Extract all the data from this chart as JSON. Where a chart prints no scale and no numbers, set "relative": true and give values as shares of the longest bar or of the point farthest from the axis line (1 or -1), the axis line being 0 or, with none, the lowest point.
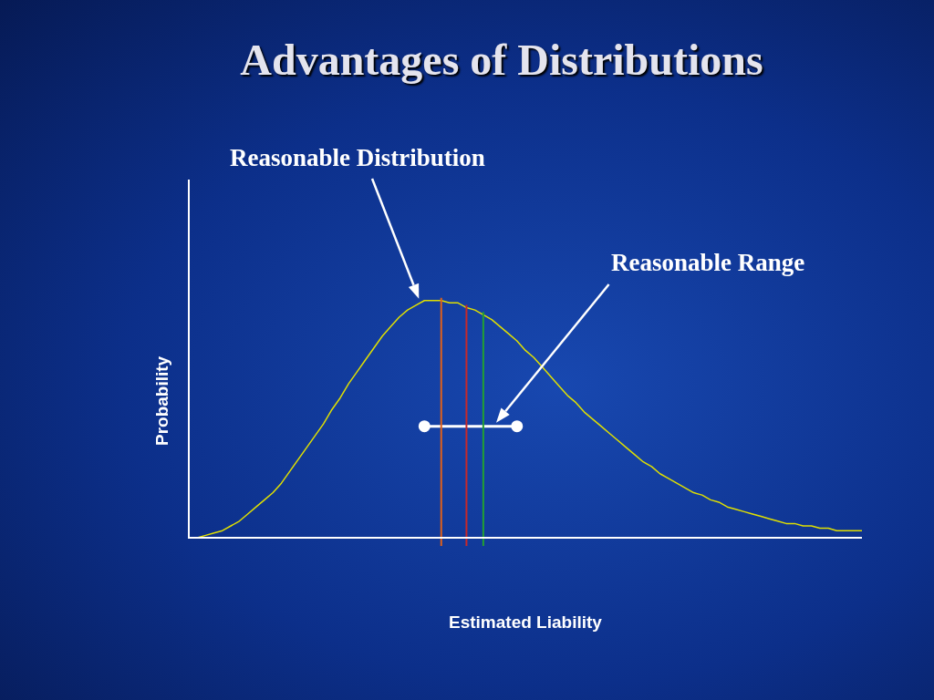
{
  "chart_data": {
    "type": "line",
    "title": "Advantages of Distributions",
    "xlabel": "Estimated Liability",
    "ylabel": "Probability",
    "relative": true,
    "annotations": [
      "Reasonable Distribution",
      "Reasonable Range"
    ],
    "categories": [
      null,
      null,
      null,
      null,
      null,
      null,
      null,
      null,
      null,
      null,
      null,
      null,
      null,
      null,
      null,
      null,
      null,
      null,
      null,
      null,
      null,
      null,
      null,
      null,
      null,
      null,
      null,
      null,
      null,
      null,
      null,
      null,
      null,
      null,
      null,
      null,
      null,
      null,
      null,
      null,
      null,
      null,
      null,
      null,
      null,
      null,
      null,
      null,
      null,
      null,
      null,
      null,
      null,
      null,
      null,
      null,
      null,
      null,
      null,
      null,
      null,
      null,
      null,
      null,
      null,
      null,
      null,
      null,
      null,
      null,
      null,
      null,
      null,
      null,
      null,
      null,
      null,
      null,
      null,
      null,
      null
    ],
    "series": [
      {
        "color": "#e0e000",
        "marker": "none",
        "values": [
          0.0,
          0.0,
          0.01,
          0.02,
          0.03,
          0.05,
          0.07,
          0.1,
          0.13,
          0.16,
          0.19,
          0.23,
          0.28,
          0.33,
          0.38,
          0.43,
          0.48,
          0.54,
          0.59,
          0.65,
          0.7,
          0.75,
          0.8,
          0.85,
          0.89,
          0.93,
          0.96,
          0.98,
          1.0,
          1.0,
          1.0,
          0.99,
          0.99,
          0.97,
          0.96,
          0.94,
          0.92,
          0.89,
          0.86,
          0.83,
          0.79,
          0.76,
          0.72,
          0.68,
          0.64,
          0.6,
          0.57,
          0.53,
          0.5,
          0.47,
          0.44,
          0.41,
          0.38,
          0.35,
          0.32,
          0.3,
          0.27,
          0.25,
          0.23,
          0.21,
          0.19,
          0.18,
          0.16,
          0.15,
          0.13,
          0.12,
          0.11,
          0.1,
          0.09,
          0.08,
          0.07,
          0.06,
          0.06,
          0.05,
          0.05,
          0.04,
          0.04,
          0.03,
          0.03,
          0.03,
          0.03
        ]
      },
      {
        "color": "#ffffff",
        "marker": "circle",
        "values": [
          null,
          null,
          null,
          null,
          null,
          null,
          null,
          null,
          null,
          null,
          null,
          null,
          null,
          null,
          null,
          null,
          null,
          null,
          null,
          null,
          null,
          null,
          null,
          null,
          null,
          null,
          null,
          null,
          0.47,
          null,
          null,
          null,
          null,
          null,
          null,
          null,
          null,
          null,
          null,
          0.47,
          null,
          null,
          null,
          null,
          null,
          null,
          null,
          null,
          null,
          null,
          null,
          null,
          null,
          null,
          null,
          null,
          null,
          null,
          null,
          null,
          null,
          null,
          null,
          null,
          null,
          null,
          null,
          null,
          null,
          null,
          null,
          null,
          null,
          null,
          null,
          null,
          null,
          null,
          null,
          null,
          null
        ]
      }
    ]
  }
}
